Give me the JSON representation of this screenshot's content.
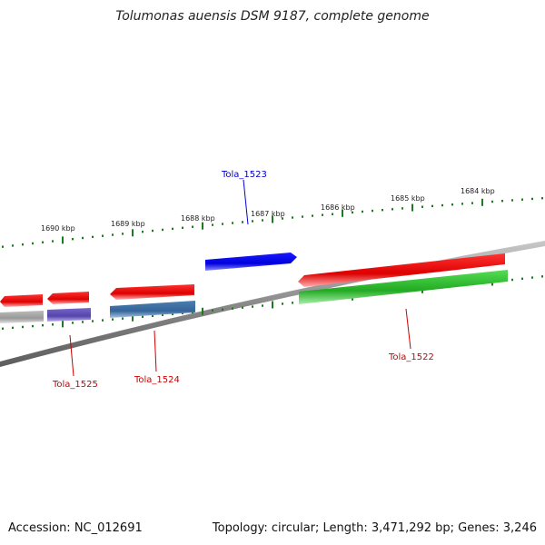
{
  "title": "Tolumonas auensis DSM 9187, complete genome",
  "footer": {
    "accession": "Accession: NC_012691",
    "topology": "Topology: circular; Length: 3,471,292 bp; Genes: 3,246"
  },
  "kbp_labels": [
    "1690 kbp",
    "1689 kbp",
    "1688 kbp",
    "1687 kbp",
    "1686 kbp",
    "1685 kbp",
    "1684 kbp"
  ],
  "gene_labels": [
    {
      "name": "Tola_1523",
      "color": "#0000cc"
    },
    {
      "name": "Tola_1525",
      "color": "#cc0000"
    },
    {
      "name": "Tola_1524",
      "color": "#cc0000"
    },
    {
      "name": "Tola_1522",
      "color": "#cc0000"
    }
  ],
  "colors": {
    "backbone": "#8a8a8a",
    "tick": "#1e7a1e",
    "forward_feature": "#0000ee",
    "cds": "#ee0000",
    "gene_green": "#33bb33",
    "gene_blue": "#4477aa",
    "gene_purple": "#6655bb",
    "gene_gray": "#aaaaaa"
  }
}
